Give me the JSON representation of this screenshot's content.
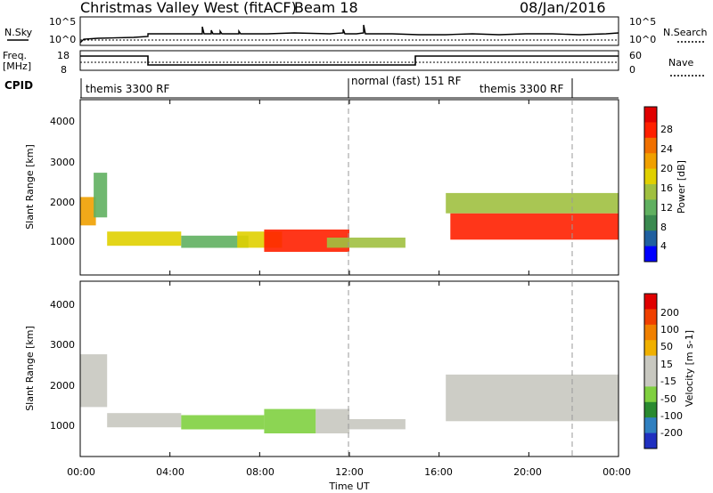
{
  "header": {
    "radar": "Christmas Valley West (fitACF)",
    "beam": "Beam 18",
    "date": "08/Jan/2016"
  },
  "noise_panel": {
    "left_label": "N.Sky",
    "right_label": "N.Search",
    "left_ticks": [
      "10^5",
      "10^0"
    ],
    "right_ticks": [
      "10^5",
      "10^0"
    ]
  },
  "freq_panel": {
    "left_label_1": "Freq.",
    "left_label_2": "[MHz]",
    "right_label": "Nave",
    "left_ticks": [
      "18",
      "8"
    ],
    "right_ticks": [
      "60",
      "0"
    ],
    "freq_levels_mhz": [
      15,
      11,
      15
    ],
    "nave_level": 0.35
  },
  "cpid_panel": {
    "label": "CPID",
    "segments": [
      {
        "name": "themis 3300 RF",
        "start_h": 0,
        "end_h": 12
      },
      {
        "name": "normal (fast) 151 RF",
        "start_h": 12,
        "end_h": 22
      },
      {
        "name": "themis 3300 RF",
        "start_h": 22,
        "end_h": 24
      }
    ]
  },
  "x_axis": {
    "label": "Time UT",
    "ticks": [
      "00:00",
      "04:00",
      "08:00",
      "12:00",
      "16:00",
      "20:00",
      "00:00"
    ],
    "range_h": [
      0,
      24
    ]
  },
  "power_panel": {
    "ylabel": "Slant Range [km]",
    "yticks": [
      "1000",
      "2000",
      "3000",
      "4000"
    ],
    "colorbar_label": "Power [dB]",
    "colorbar_ticks": [
      "4",
      "8",
      "12",
      "16",
      "20",
      "24",
      "28"
    ]
  },
  "velocity_panel": {
    "ylabel": "Slant Range [km]",
    "yticks": [
      "1000",
      "2000",
      "3000",
      "4000"
    ],
    "colorbar_label": "Velocity [m s-1]",
    "colorbar_ticks": [
      "200",
      "100",
      "50",
      "15",
      "-15",
      "-50",
      "-100",
      "-200"
    ]
  },
  "colors": {
    "power_scale": [
      "#0000ff",
      "#2060a0",
      "#3a8a50",
      "#60b060",
      "#a0c040",
      "#e0d000",
      "#f0a000",
      "#f07000",
      "#ff2000",
      "#e00000"
    ],
    "velocity_scale": [
      "#2030c0",
      "#3080c0",
      "#2a8a30",
      "#80d040",
      "#c8c8c0",
      "#c8c8c0",
      "#f0b000",
      "#f08000",
      "#f04000",
      "#e00000"
    ]
  },
  "chart_data": [
    {
      "type": "heatmap",
      "title": "Power",
      "xlabel": "Time UT",
      "ylabel": "Slant Range [km]",
      "xlim_h": [
        0,
        24
      ],
      "ylim_km": [
        180,
        4500
      ],
      "clim_db": [
        0,
        32
      ],
      "regions": [
        {
          "t0": 0.0,
          "t1": 0.7,
          "r0": 1400,
          "r1": 2100,
          "db": 22
        },
        {
          "t0": 0.6,
          "t1": 1.2,
          "r0": 1600,
          "r1": 2700,
          "db": 10
        },
        {
          "t0": 1.2,
          "t1": 4.5,
          "r0": 900,
          "r1": 1250,
          "db": 18
        },
        {
          "t0": 4.5,
          "t1": 7.5,
          "r0": 850,
          "r1": 1150,
          "db": 12
        },
        {
          "t0": 7.0,
          "t1": 9.0,
          "r0": 850,
          "r1": 1250,
          "db": 16
        },
        {
          "t0": 8.2,
          "t1": 12.0,
          "r0": 750,
          "r1": 1300,
          "db": 28
        },
        {
          "t0": 11.0,
          "t1": 14.5,
          "r0": 850,
          "r1": 1100,
          "db": 14
        },
        {
          "t0": 16.5,
          "t1": 24.0,
          "r0": 1050,
          "r1": 1700,
          "db": 28
        },
        {
          "t0": 16.3,
          "t1": 24.0,
          "r0": 1700,
          "r1": 2200,
          "db": 14
        }
      ]
    },
    {
      "type": "heatmap",
      "title": "Velocity",
      "xlabel": "Time UT",
      "ylabel": "Slant Range [km]",
      "xlim_h": [
        0,
        24
      ],
      "ylim_km": [
        180,
        4500
      ],
      "clim_ms": [
        -250,
        250
      ],
      "regions": [
        {
          "t0": 0.0,
          "t1": 1.2,
          "r0": 1400,
          "r1": 2700,
          "v": 0
        },
        {
          "t0": 1.2,
          "t1": 4.5,
          "r0": 900,
          "r1": 1250,
          "v": -40
        },
        {
          "t0": 4.5,
          "t1": 8.2,
          "r0": 850,
          "r1": 1200,
          "v": -60
        },
        {
          "t0": 8.2,
          "t1": 10.5,
          "r0": 750,
          "r1": 1350,
          "v": -80
        },
        {
          "t0": 10.5,
          "t1": 12.0,
          "r0": 750,
          "r1": 1350,
          "v": 40
        },
        {
          "t0": 12.0,
          "t1": 14.5,
          "r0": 850,
          "r1": 1100,
          "v": -20
        },
        {
          "t0": 16.3,
          "t1": 24.0,
          "r0": 1050,
          "r1": 2200,
          "v": 0
        }
      ]
    }
  ]
}
